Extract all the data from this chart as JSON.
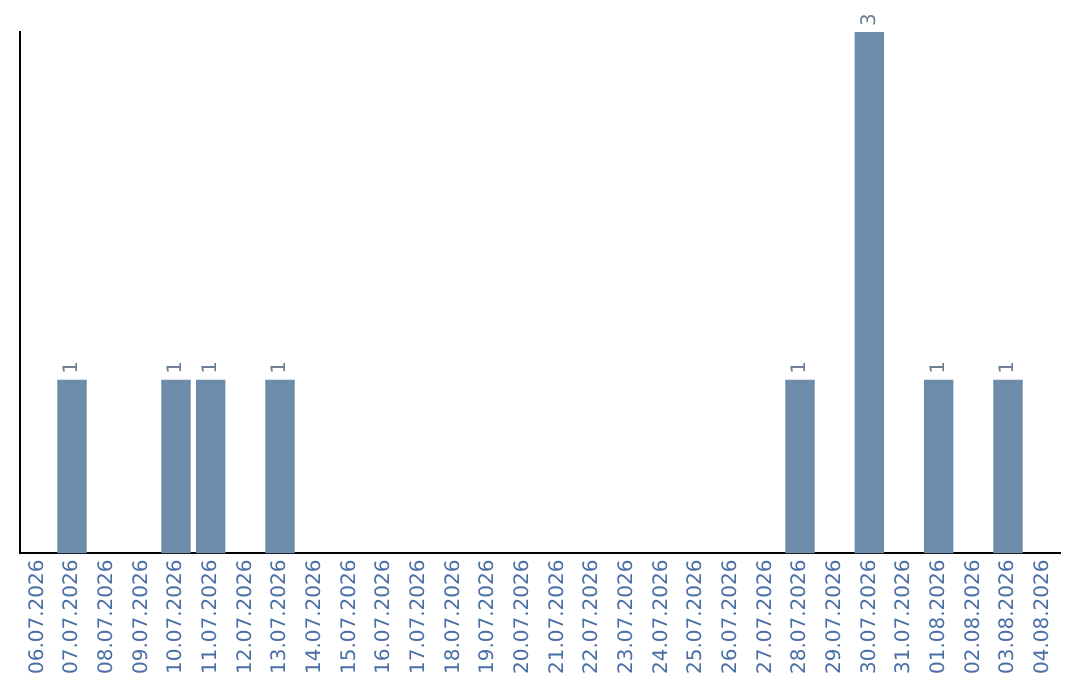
{
  "chart_data": {
    "type": "bar",
    "categories": [
      "06.07.2026",
      "07.07.2026",
      "08.07.2026",
      "09.07.2026",
      "10.07.2026",
      "11.07.2026",
      "12.07.2026",
      "13.07.2026",
      "14.07.2026",
      "15.07.2026",
      "16.07.2026",
      "17.07.2026",
      "18.07.2026",
      "19.07.2026",
      "20.07.2026",
      "21.07.2026",
      "22.07.2026",
      "23.07.2026",
      "24.07.2026",
      "25.07.2026",
      "26.07.2026",
      "27.07.2026",
      "28.07.2026",
      "29.07.2026",
      "30.07.2026",
      "31.07.2026",
      "01.08.2026",
      "02.08.2026",
      "03.08.2026",
      "04.08.2026"
    ],
    "values": [
      0,
      1,
      0,
      0,
      1,
      1,
      0,
      1,
      0,
      0,
      0,
      0,
      0,
      0,
      0,
      0,
      0,
      0,
      0,
      0,
      0,
      0,
      1,
      0,
      3,
      0,
      1,
      0,
      1,
      0
    ],
    "value_labels": [
      null,
      "1",
      null,
      null,
      "1",
      "1",
      null,
      "1",
      null,
      null,
      null,
      null,
      null,
      null,
      null,
      null,
      null,
      null,
      null,
      null,
      null,
      null,
      "1",
      null,
      "3",
      null,
      "1",
      null,
      "1",
      null
    ],
    "color": "#6d8cac",
    "tick_labels": "x"
  }
}
